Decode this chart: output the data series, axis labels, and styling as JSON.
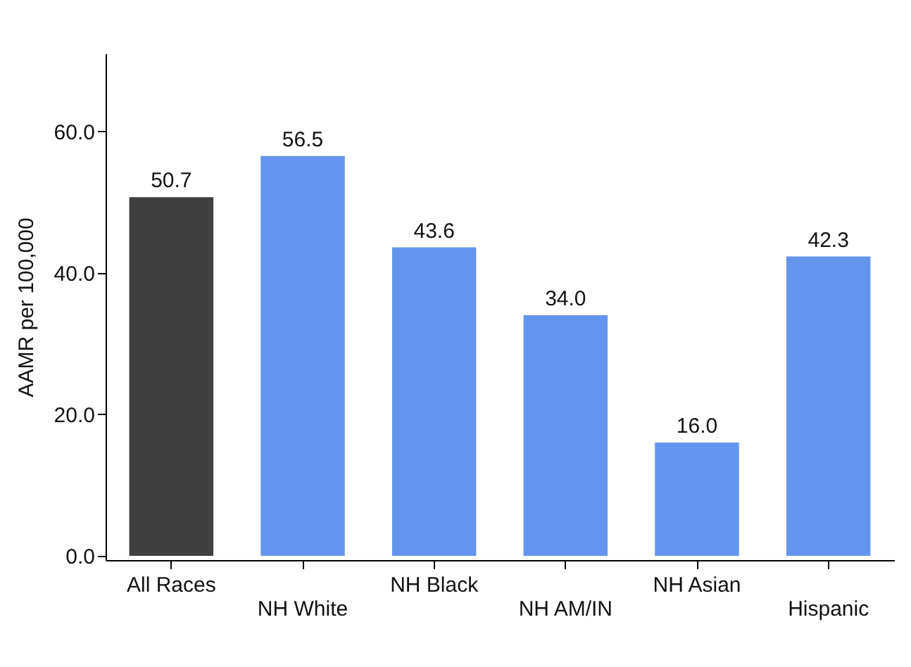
{
  "chart_data": {
    "type": "bar",
    "ylabel": "AAMR per 100,000",
    "categories": [
      "All Races",
      "NH White",
      "NH Black",
      "NH AM/IN",
      "NH Asian",
      "Hispanic"
    ],
    "values": [
      50.7,
      56.5,
      43.6,
      34.0,
      16.0,
      42.3
    ],
    "colors": [
      "#404040",
      "#6495ed",
      "#6495ed",
      "#6495ed",
      "#6495ed",
      "#6495ed"
    ],
    "ylim": [
      -0.6,
      71
    ],
    "yticks": [
      {
        "value": 0,
        "label": "0.0"
      },
      {
        "value": 20,
        "label": "20.0"
      },
      {
        "value": 40,
        "label": "40.0"
      },
      {
        "value": 60,
        "label": "60.0"
      }
    ],
    "value_labels": [
      "50.7",
      "56.5",
      "43.6",
      "34.0",
      "16.0",
      "42.3"
    ],
    "grid": false
  }
}
